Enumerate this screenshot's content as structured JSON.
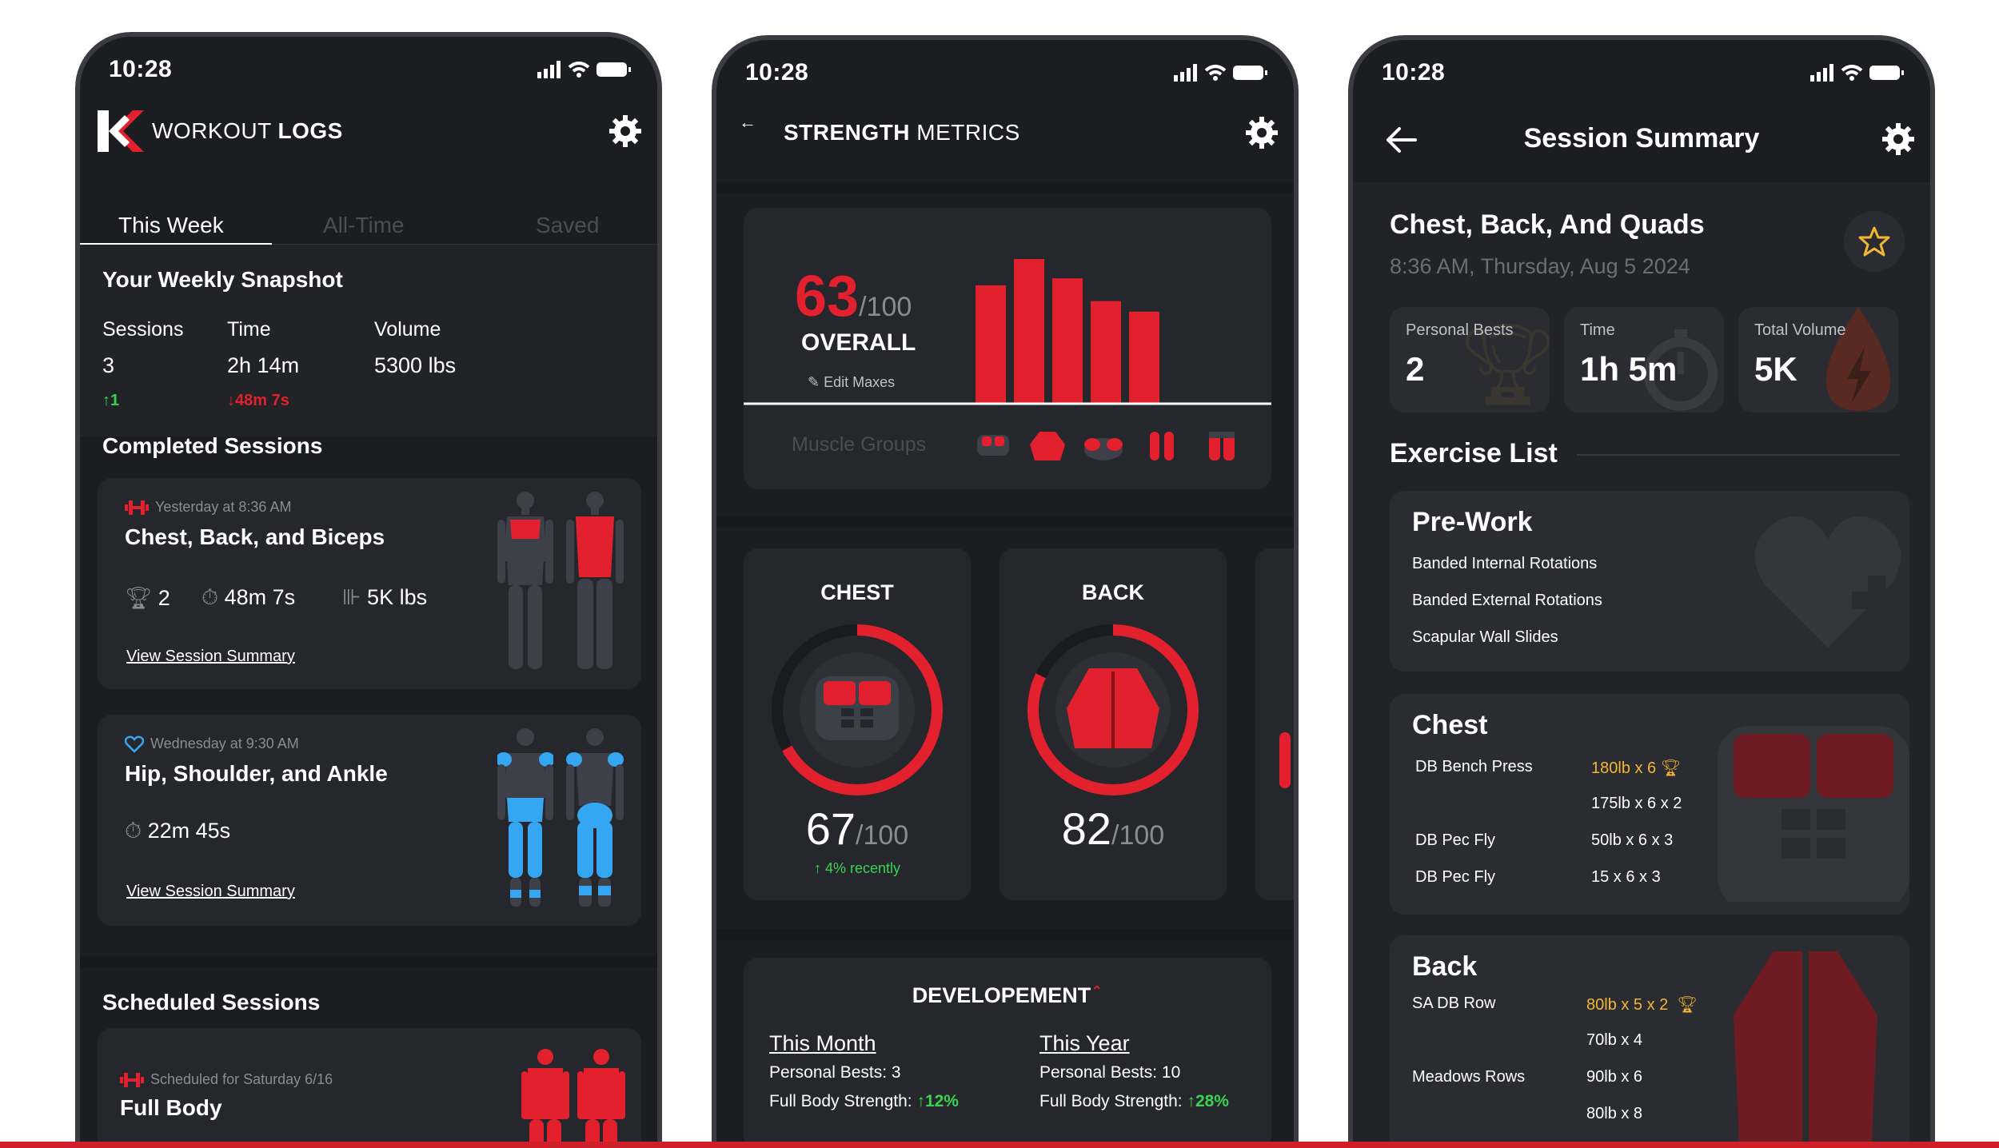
{
  "status": {
    "time": "10:28"
  },
  "screen1": {
    "brand": "WORKOUT",
    "title": "LOGS",
    "tabs": [
      "This Week",
      "All-Time",
      "Saved"
    ],
    "snapshot": {
      "title": "Your Weekly Snapshot",
      "cols": [
        {
          "label": "Sessions",
          "value": "3",
          "delta": "1",
          "dir": "up"
        },
        {
          "label": "Time",
          "value": "2h 14m",
          "delta": "48m 7s",
          "dir": "down"
        },
        {
          "label": "Volume",
          "value": "5300 lbs",
          "delta": "",
          "dir": ""
        }
      ]
    },
    "completed_title": "Completed Sessions",
    "sessions": [
      {
        "when": "Yesterday at 8:36 AM",
        "name": "Chest, Back, and Biceps",
        "bests": "2",
        "time": "48m 7s",
        "volume": "5K lbs",
        "link": "View Session Summary",
        "color": "#e3202d"
      },
      {
        "when": "Wednesday at 9:30 AM",
        "name": "Hip, Shoulder, and Ankle",
        "time": "22m 45s",
        "link": "View Session Summary",
        "color": "#35a7f2"
      }
    ],
    "scheduled_title": "Scheduled Sessions",
    "scheduled": {
      "when": "Scheduled for Saturday 6/16",
      "name": "Full Body"
    }
  },
  "screen2": {
    "brand": "STRENGTH",
    "title": "METRICS",
    "overall": {
      "score": "63",
      "of": "/100",
      "label": "OVERALL",
      "edit": "Edit Maxes"
    },
    "muscle_groups_label": "Muscle Groups",
    "chart_data": {
      "type": "bar",
      "categories": [
        "Chest",
        "Back",
        "Shoulders",
        "Arms",
        "Legs"
      ],
      "values": [
        67,
        82,
        71,
        58,
        52
      ],
      "ylim": [
        0,
        100
      ]
    },
    "gauges": [
      {
        "label": "CHEST",
        "score": "67",
        "of": "/100",
        "value": 67,
        "trend": "4% recently"
      },
      {
        "label": "BACK",
        "score": "82",
        "of": "/100",
        "value": 82,
        "trend": ""
      }
    ],
    "development": {
      "title": "DEVELOPEMENT",
      "cols": [
        {
          "period": "This Month",
          "bests": "Personal Bests: 3",
          "strength_label": "Full Body Strength:",
          "strength": "12%"
        },
        {
          "period": "This Year",
          "bests": "Personal Bests: 10",
          "strength_label": "Full Body Strength:",
          "strength": "28%"
        }
      ]
    }
  },
  "screen3": {
    "title": "Session Summary",
    "session_name": "Chest, Back, And Quads",
    "session_time": "8:36 AM, Thursday, Aug 5 2024",
    "stats": [
      {
        "label": "Personal Bests",
        "value": "2"
      },
      {
        "label": "Time",
        "value": "1h 5m"
      },
      {
        "label": "Total Volume",
        "value": "5K"
      }
    ],
    "exercise_list_title": "Exercise List",
    "prework": {
      "title": "Pre-Work",
      "items": [
        "Banded Internal Rotations",
        "Banded External Rotations",
        "Scapular Wall Slides"
      ]
    },
    "chest": {
      "title": "Chest",
      "rows": [
        {
          "name": "DB Bench Press",
          "sets": "180lb x 6",
          "best": true
        },
        {
          "name": "",
          "sets": "175lb x 6 x 2",
          "best": false
        },
        {
          "name": "DB Pec Fly",
          "sets": "50lb x 6 x 3",
          "best": false
        },
        {
          "name": "DB Pec Fly",
          "sets": "15 x 6 x 3",
          "best": false
        }
      ]
    },
    "back": {
      "title": "Back",
      "rows": [
        {
          "name": "SA DB Row",
          "sets": "80lb x 5 x 2",
          "best": true
        },
        {
          "name": "",
          "sets": "70lb x 4",
          "best": false
        },
        {
          "name": "Meadows Rows",
          "sets": "90lb x 6",
          "best": false
        },
        {
          "name": "",
          "sets": "80lb x 8",
          "best": false
        }
      ]
    }
  }
}
